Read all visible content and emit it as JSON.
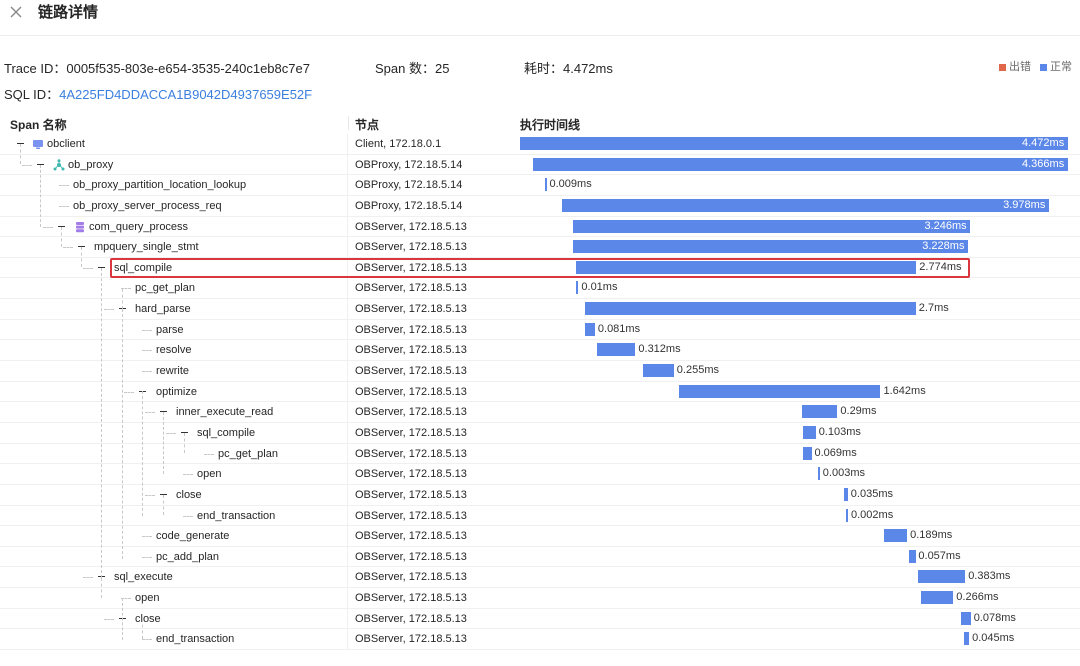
{
  "header": {
    "title": "链路详情",
    "close_icon": "close-icon"
  },
  "summary": {
    "trace_label": "Trace ID：0005f535-803e-e654-3535-240c1eb8c7e7",
    "span_label": "Span 数：25",
    "duration_label": "耗时：4.472ms",
    "sql_label": "SQL ID：",
    "sql_id": "4A225FD4DDACCA1B9042D4937659E52F"
  },
  "legend": [
    {
      "label": "出错",
      "color": "#e0674a"
    },
    {
      "label": "正常",
      "color": "#5b87e8"
    }
  ],
  "columns": {
    "name": "Span 名称",
    "node": "节点",
    "timeline": "执行时间线"
  },
  "colors": {
    "bar": "#5b87e8",
    "highlight": "#d9363e"
  },
  "timeline": {
    "total_ms": 4.472
  },
  "spans": [
    {
      "name": "obclient",
      "node": "Client, 172.18.0.1",
      "start_ms": 0.0,
      "dur_ms": 4.472,
      "label": "4.472ms",
      "icon": "client-icon"
    },
    {
      "name": "ob_proxy",
      "node": "OBProxy, 172.18.5.14",
      "start_ms": 0.106,
      "dur_ms": 4.366,
      "label": "4.366ms",
      "icon": "proxy-icon"
    },
    {
      "name": "ob_proxy_partition_location_lookup",
      "node": "OBProxy, 172.18.5.14",
      "start_ms": 0.2,
      "dur_ms": 0.009,
      "label": "0.009ms"
    },
    {
      "name": "ob_proxy_server_process_req",
      "node": "OBProxy, 172.18.5.14",
      "start_ms": 0.34,
      "dur_ms": 3.978,
      "label": "3.978ms"
    },
    {
      "name": "com_query_process",
      "node": "OBServer, 172.18.5.13",
      "start_ms": 0.43,
      "dur_ms": 3.246,
      "label": "3.246ms",
      "icon": "database-icon"
    },
    {
      "name": "mpquery_single_stmt",
      "node": "OBServer, 172.18.5.13",
      "start_ms": 0.43,
      "dur_ms": 3.228,
      "label": "3.228ms"
    },
    {
      "name": "sql_compile",
      "node": "OBServer, 172.18.5.13",
      "start_ms": 0.46,
      "dur_ms": 2.774,
      "label": "2.774ms"
    },
    {
      "name": "pc_get_plan",
      "node": "OBServer, 172.18.5.13",
      "start_ms": 0.46,
      "dur_ms": 0.01,
      "label": "0.01ms"
    },
    {
      "name": "hard_parse",
      "node": "OBServer, 172.18.5.13",
      "start_ms": 0.53,
      "dur_ms": 2.7,
      "label": "2.7ms"
    },
    {
      "name": "parse",
      "node": "OBServer, 172.18.5.13",
      "start_ms": 0.53,
      "dur_ms": 0.081,
      "label": "0.081ms"
    },
    {
      "name": "resolve",
      "node": "OBServer, 172.18.5.13",
      "start_ms": 0.63,
      "dur_ms": 0.312,
      "label": "0.312ms"
    },
    {
      "name": "rewrite",
      "node": "OBServer, 172.18.5.13",
      "start_ms": 1.0,
      "dur_ms": 0.255,
      "label": "0.255ms"
    },
    {
      "name": "optimize",
      "node": "OBServer, 172.18.5.13",
      "start_ms": 1.3,
      "dur_ms": 1.642,
      "label": "1.642ms"
    },
    {
      "name": "inner_execute_read",
      "node": "OBServer, 172.18.5.13",
      "start_ms": 2.3,
      "dur_ms": 0.29,
      "label": "0.29ms"
    },
    {
      "name": "sql_compile",
      "node": "OBServer, 172.18.5.13",
      "start_ms": 2.31,
      "dur_ms": 0.103,
      "label": "0.103ms"
    },
    {
      "name": "pc_get_plan",
      "node": "OBServer, 172.18.5.13",
      "start_ms": 2.31,
      "dur_ms": 0.069,
      "label": "0.069ms"
    },
    {
      "name": "open",
      "node": "OBServer, 172.18.5.13",
      "start_ms": 2.43,
      "dur_ms": 0.003,
      "label": "0.003ms"
    },
    {
      "name": "close",
      "node": "OBServer, 172.18.5.13",
      "start_ms": 2.64,
      "dur_ms": 0.035,
      "label": "0.035ms"
    },
    {
      "name": "end_transaction",
      "node": "OBServer, 172.18.5.13",
      "start_ms": 2.66,
      "dur_ms": 0.002,
      "label": "0.002ms"
    },
    {
      "name": "code_generate",
      "node": "OBServer, 172.18.5.13",
      "start_ms": 2.97,
      "dur_ms": 0.189,
      "label": "0.189ms"
    },
    {
      "name": "pc_add_plan",
      "node": "OBServer, 172.18.5.13",
      "start_ms": 3.17,
      "dur_ms": 0.057,
      "label": "0.057ms"
    },
    {
      "name": "sql_execute",
      "node": "OBServer, 172.18.5.13",
      "start_ms": 3.25,
      "dur_ms": 0.383,
      "label": "0.383ms"
    },
    {
      "name": "open",
      "node": "OBServer, 172.18.5.13",
      "start_ms": 3.27,
      "dur_ms": 0.266,
      "label": "0.266ms"
    },
    {
      "name": "close",
      "node": "OBServer, 172.18.5.13",
      "start_ms": 3.6,
      "dur_ms": 0.078,
      "label": "0.078ms"
    },
    {
      "name": "end_transaction",
      "node": "OBServer, 172.18.5.13",
      "start_ms": 3.62,
      "dur_ms": 0.045,
      "label": "0.045ms"
    }
  ]
}
